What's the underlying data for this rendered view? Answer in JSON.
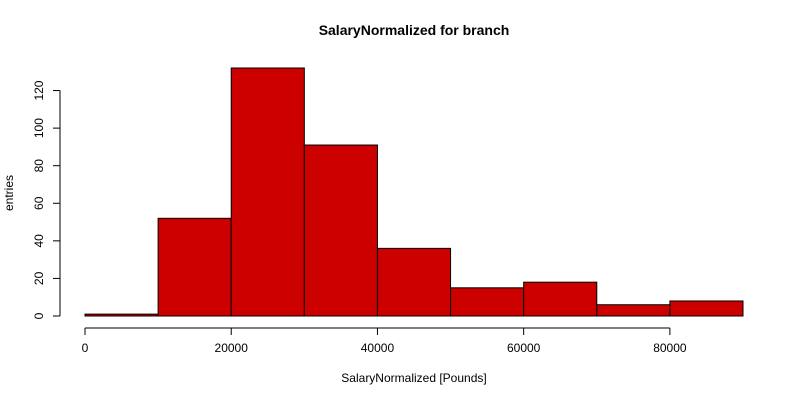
{
  "chart_data": {
    "type": "bar",
    "subtype": "histogram",
    "title": "SalaryNormalized for branch",
    "xlabel": "SalaryNormalized [Pounds]",
    "ylabel": "entries",
    "bins": [
      {
        "start": 0,
        "end": 10000,
        "count": 1
      },
      {
        "start": 10000,
        "end": 20000,
        "count": 52
      },
      {
        "start": 20000,
        "end": 30000,
        "count": 132
      },
      {
        "start": 30000,
        "end": 40000,
        "count": 91
      },
      {
        "start": 40000,
        "end": 50000,
        "count": 36
      },
      {
        "start": 50000,
        "end": 60000,
        "count": 15
      },
      {
        "start": 60000,
        "end": 70000,
        "count": 18
      },
      {
        "start": 70000,
        "end": 80000,
        "count": 6
      },
      {
        "start": 80000,
        "end": 90000,
        "count": 8
      }
    ],
    "xlim": [
      0,
      90000
    ],
    "ylim": [
      0,
      132
    ],
    "x_ticks": [
      "0",
      "20000",
      "40000",
      "60000",
      "80000"
    ],
    "y_ticks": [
      "0",
      "20",
      "40",
      "60",
      "80",
      "100",
      "120"
    ],
    "bar_color": "#cd0000",
    "bar_border_color": "#000000",
    "grid": false,
    "legend": "none"
  }
}
